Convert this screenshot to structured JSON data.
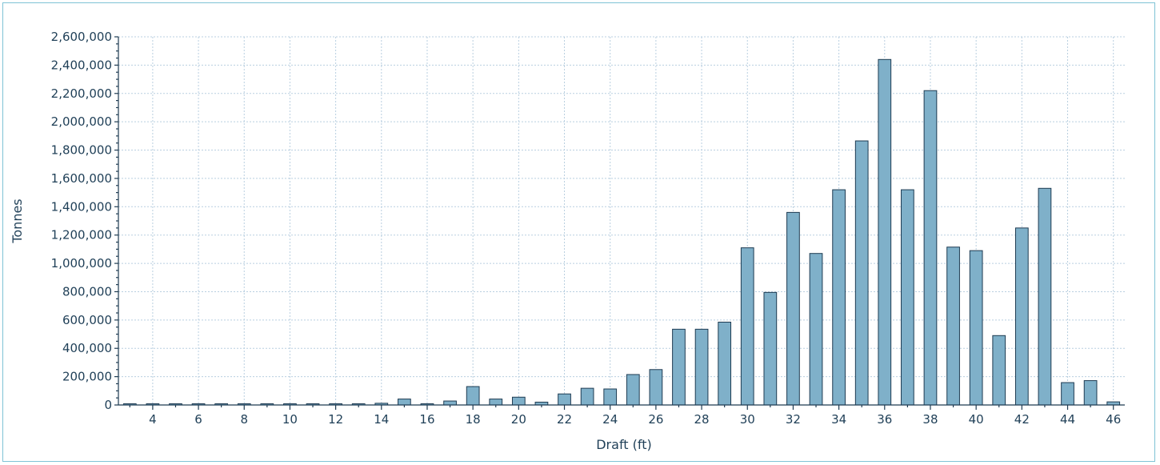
{
  "chart_data": {
    "type": "bar",
    "xlabel": "Draft (ft)",
    "ylabel": "Tonnes",
    "ylim": [
      0,
      2600000
    ],
    "xlim": [
      2.5,
      46.5
    ],
    "y_ticks": [
      "0",
      "200,000",
      "400,000",
      "600,000",
      "800,000",
      "1,000,000",
      "1,200,000",
      "1,400,000",
      "1,600,000",
      "1,800,000",
      "2,000,000",
      "2,200,000",
      "2,400,000",
      "2,600,000"
    ],
    "x_ticks": [
      "4",
      "6",
      "8",
      "10",
      "12",
      "14",
      "16",
      "18",
      "20",
      "22",
      "24",
      "26",
      "28",
      "30",
      "32",
      "34",
      "36",
      "38",
      "40",
      "42",
      "44",
      "46"
    ],
    "grid": true,
    "categories": [
      3,
      4,
      5,
      6,
      7,
      8,
      9,
      10,
      11,
      12,
      13,
      14,
      15,
      16,
      17,
      18,
      19,
      20,
      21,
      22,
      23,
      24,
      25,
      26,
      27,
      28,
      29,
      30,
      31,
      32,
      33,
      34,
      35,
      36,
      37,
      38,
      39,
      40,
      41,
      42,
      43,
      44,
      45,
      46
    ],
    "values": [
      5000,
      1000,
      1000,
      1000,
      1000,
      8000,
      1000,
      8000,
      5000,
      1000,
      8000,
      12000,
      42000,
      5000,
      28000,
      130000,
      42000,
      55000,
      20000,
      78000,
      118000,
      113000,
      215000,
      250000,
      535000,
      535000,
      585000,
      1110000,
      795000,
      1360000,
      1070000,
      1520000,
      1865000,
      2440000,
      1520000,
      2220000,
      1115000,
      1090000,
      490000,
      1250000,
      1530000,
      158000,
      172000,
      22000
    ],
    "colors": {
      "bar": "#7fb0c9",
      "bar_edge": "#1e3b52",
      "grid": "#b9cfe0",
      "text": "#1f3f57",
      "frame": "#7fc3d6"
    }
  }
}
